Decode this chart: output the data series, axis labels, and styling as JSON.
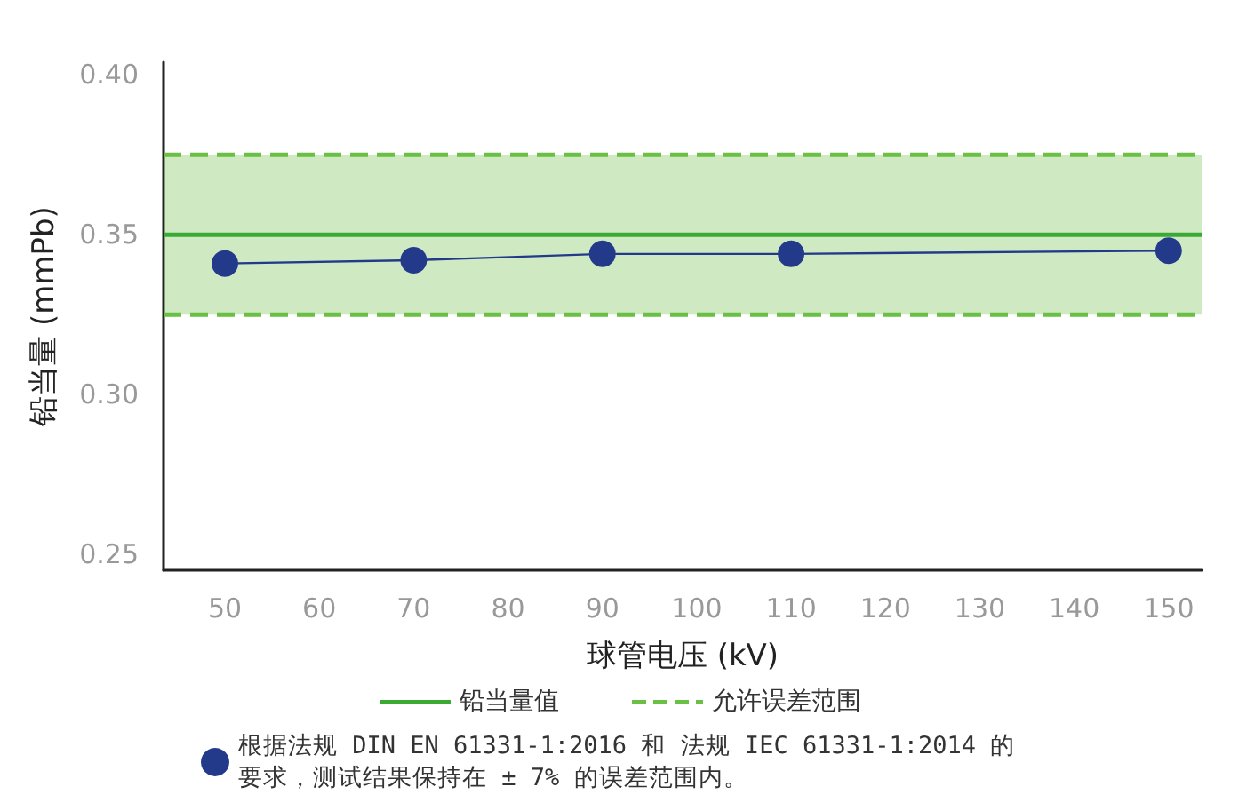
{
  "chart_data": {
    "type": "line",
    "xlabel": "球管电压 (kV)",
    "ylabel": "铅当量 (mmPb)",
    "x": [
      50,
      70,
      90,
      110,
      150
    ],
    "series": [
      {
        "name": "根据法规 DIN EN 61331-1:2016 和 法规 IEC 61331-1:2014 的要求，测试结果保持在 ± 7% 的误差范围内。",
        "color": "#233a8b",
        "values": [
          0.341,
          0.342,
          0.344,
          0.344,
          0.345
        ]
      }
    ],
    "xlim": [
      43.5,
      153.5
    ],
    "xticks": [
      50,
      60,
      70,
      80,
      90,
      100,
      110,
      120,
      130,
      140,
      150
    ],
    "ylim": [
      0.245,
      0.404
    ],
    "yticks": [
      {
        "value": 0.25,
        "label": "0.25"
      },
      {
        "value": 0.3,
        "label": "0.30"
      },
      {
        "value": 0.35,
        "label": "0.35"
      },
      {
        "value": 0.4,
        "label": "0.40"
      }
    ],
    "ref_lines": [
      {
        "axis": "y",
        "value": 0.35,
        "label": "铅当量值",
        "color": "#3aaa35",
        "line_style": "solid"
      },
      {
        "axis": "y",
        "value": 0.375,
        "color": "#6abf45",
        "line_style": "dashed"
      },
      {
        "axis": "y",
        "value": 0.325,
        "color": "#6abf45",
        "line_style": "dashed"
      }
    ],
    "bands": [
      {
        "axis": "y",
        "from": 0.325,
        "to": 0.375,
        "label": "允许误差范围",
        "color": "#6abf45"
      }
    ],
    "marker": "circle",
    "line_style": "solid",
    "grid": false,
    "legend": "bottom"
  }
}
